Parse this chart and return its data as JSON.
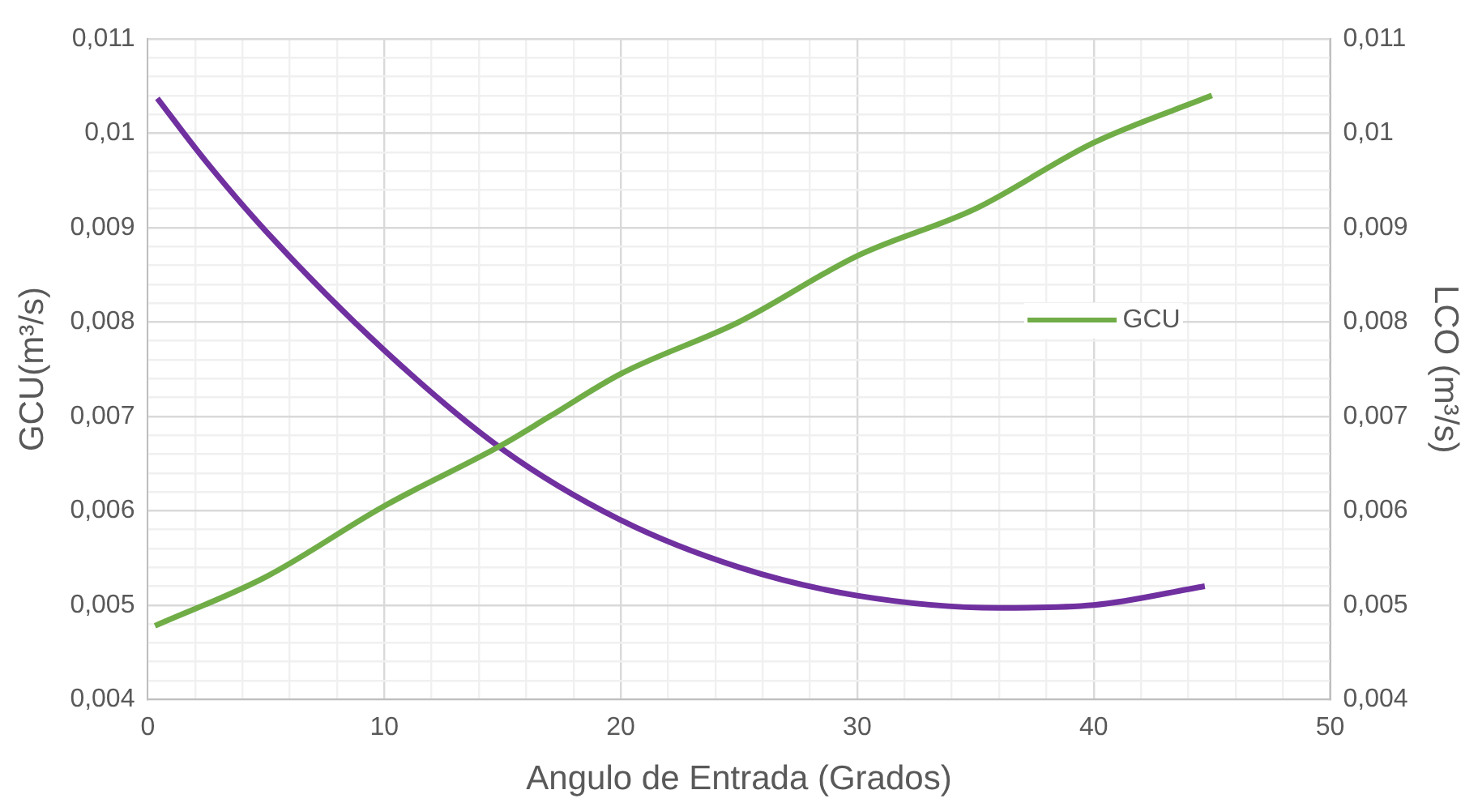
{
  "chart_data": {
    "type": "line",
    "xlabel": "Angulo de Entrada (Grados)",
    "ylabel": "GCU(m³/s)",
    "y2label": "LCO (m³/s)",
    "xlim": [
      0,
      50
    ],
    "xticks": [
      0,
      {
        "value": 2,
        "label": null
      },
      {
        "value": 4,
        "label": null
      },
      {
        "value": 6,
        "label": null
      },
      {
        "value": 8,
        "label": null
      },
      10,
      {
        "value": 12,
        "label": null
      },
      {
        "value": 14,
        "label": null
      },
      {
        "value": 16,
        "label": null
      },
      {
        "value": 18,
        "label": null
      },
      20,
      {
        "value": 22,
        "label": null
      },
      {
        "value": 24,
        "label": null
      },
      {
        "value": 26,
        "label": null
      },
      {
        "value": 28,
        "label": null
      },
      30,
      {
        "value": 32,
        "label": null
      },
      {
        "value": 34,
        "label": null
      },
      {
        "value": 36,
        "label": null
      },
      {
        "value": 38,
        "label": null
      },
      40,
      {
        "value": 42,
        "label": null
      },
      {
        "value": 44,
        "label": null
      },
      {
        "value": 46,
        "label": null
      },
      {
        "value": 48,
        "label": null
      },
      50
    ],
    "ylim": [
      0.004,
      0.011
    ],
    "yticks": [
      {
        "value": 0.004,
        "label": "0,004"
      },
      {
        "value": 0.0042,
        "label": null
      },
      {
        "value": 0.0044,
        "label": null
      },
      {
        "value": 0.0046,
        "label": null
      },
      {
        "value": 0.0048,
        "label": null
      },
      {
        "value": 0.005,
        "label": "0,005"
      },
      {
        "value": 0.0052,
        "label": null
      },
      {
        "value": 0.0054,
        "label": null
      },
      {
        "value": 0.0056,
        "label": null
      },
      {
        "value": 0.0058,
        "label": null
      },
      {
        "value": 0.006,
        "label": "0,006"
      },
      {
        "value": 0.0062,
        "label": null
      },
      {
        "value": 0.0064,
        "label": null
      },
      {
        "value": 0.0066,
        "label": null
      },
      {
        "value": 0.0068,
        "label": null
      },
      {
        "value": 0.007,
        "label": "0,007"
      },
      {
        "value": 0.0072,
        "label": null
      },
      {
        "value": 0.0074,
        "label": null
      },
      {
        "value": 0.0076,
        "label": null
      },
      {
        "value": 0.0078,
        "label": null
      },
      {
        "value": 0.008,
        "label": "0,008"
      },
      {
        "value": 0.0082,
        "label": null
      },
      {
        "value": 0.0084,
        "label": null
      },
      {
        "value": 0.0086,
        "label": null
      },
      {
        "value": 0.0088,
        "label": null
      },
      {
        "value": 0.009,
        "label": "0,009"
      },
      {
        "value": 0.0092,
        "label": null
      },
      {
        "value": 0.0094,
        "label": null
      },
      {
        "value": 0.0096,
        "label": null
      },
      {
        "value": 0.0098,
        "label": null
      },
      {
        "value": 0.01,
        "label": "0,01"
      },
      {
        "value": 0.0102,
        "label": null
      },
      {
        "value": 0.0104,
        "label": null
      },
      {
        "value": 0.0106,
        "label": null
      },
      {
        "value": 0.0108,
        "label": null
      },
      {
        "value": 0.011,
        "label": "0,011"
      }
    ],
    "y2lim": [
      0.004,
      0.011
    ],
    "y2ticks": [
      {
        "value": 0.004,
        "label": "0,004"
      },
      {
        "value": 0.005,
        "label": "0,005"
      },
      {
        "value": 0.006,
        "label": "0,006"
      },
      {
        "value": 0.007,
        "label": "0,007"
      },
      {
        "value": 0.008,
        "label": "0,008"
      },
      {
        "value": 0.009,
        "label": "0,009"
      },
      {
        "value": 0.01,
        "label": "0,01"
      },
      {
        "value": 0.011,
        "label": "0,011"
      }
    ],
    "grid": true,
    "legend": "right",
    "marker": "none",
    "line_style": "solid",
    "series": [
      {
        "name": "GCU",
        "color": "#70ad47",
        "x": [
          0.3,
          5,
          10,
          15,
          17,
          20,
          25,
          30,
          35,
          40,
          45
        ],
        "values": [
          0.00478,
          0.0053,
          0.00605,
          0.0067,
          0.007,
          0.00745,
          0.008,
          0.0087,
          0.0092,
          0.0099,
          0.0104
        ]
      },
      {
        "color": "#7030a0",
        "axis": "y2",
        "x": [
          0.4,
          2.3,
          5,
          10,
          15,
          20,
          25,
          30,
          36,
          40,
          44.7
        ],
        "values": [
          0.01037,
          0.00975,
          0.00896,
          0.0077,
          0.00665,
          0.0059,
          0.0054,
          0.0051,
          0.00497,
          0.005,
          0.0052
        ]
      }
    ]
  }
}
